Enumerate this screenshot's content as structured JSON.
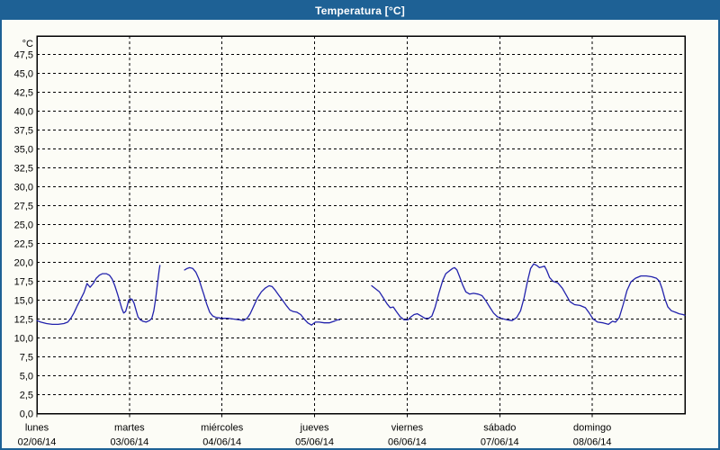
{
  "window": {
    "title": "Temperatura [°C]",
    "titlebar_color": "#1e6195",
    "border_color": "#1e6195",
    "background_color": "#fcfcf6"
  },
  "chart_data": {
    "type": "line",
    "title": "Temperatura [°C]",
    "unit_label": "°C",
    "grid": "dashed",
    "legend_position": "none",
    "y_axis": {
      "min": 0,
      "max": 50,
      "tick_step": 2.5,
      "ticks": [
        {
          "label": "47,5",
          "value": 47.5
        },
        {
          "label": "45,0",
          "value": 45.0
        },
        {
          "label": "42,5",
          "value": 42.5
        },
        {
          "label": "40,0",
          "value": 40.0
        },
        {
          "label": "37,5",
          "value": 37.5
        },
        {
          "label": "35,0",
          "value": 35.0
        },
        {
          "label": "32,5",
          "value": 32.5
        },
        {
          "label": "30,0",
          "value": 30.0
        },
        {
          "label": "27,5",
          "value": 27.5
        },
        {
          "label": "25,0",
          "value": 25.0
        },
        {
          "label": "22,5",
          "value": 22.5
        },
        {
          "label": "20,0",
          "value": 20.0
        },
        {
          "label": "17,5",
          "value": 17.5
        },
        {
          "label": "15,0",
          "value": 15.0
        },
        {
          "label": "12,5",
          "value": 12.5
        },
        {
          "label": "10,0",
          "value": 10.0
        },
        {
          "label": "7,5",
          "value": 7.5
        },
        {
          "label": "5,0",
          "value": 5.0
        },
        {
          "label": "2,5",
          "value": 2.5
        },
        {
          "label": "0,0",
          "value": 0.0
        }
      ]
    },
    "x_axis": {
      "total_hours": 168,
      "tick_every_hours": 24,
      "days": [
        {
          "name": "lunes",
          "date": "02/06/14",
          "start_hour": 0
        },
        {
          "name": "martes",
          "date": "03/06/14",
          "start_hour": 24
        },
        {
          "name": "miércoles",
          "date": "04/06/14",
          "start_hour": 48
        },
        {
          "name": "jueves",
          "date": "05/06/14",
          "start_hour": 72
        },
        {
          "name": "viernes",
          "date": "06/06/14",
          "start_hour": 96
        },
        {
          "name": "sábado",
          "date": "07/06/14",
          "start_hour": 120
        },
        {
          "name": "domingo",
          "date": "08/06/14",
          "start_hour": 144
        }
      ]
    },
    "series": [
      {
        "name": "Temperatura",
        "color": "#2222ac",
        "segments": [
          [
            [
              0,
              12.3
            ],
            [
              1,
              12.1
            ],
            [
              2.5,
              11.9
            ],
            [
              4,
              11.8
            ],
            [
              5.5,
              11.8
            ],
            [
              7,
              11.9
            ],
            [
              8,
              12.1
            ],
            [
              8.8,
              12.6
            ],
            [
              9.6,
              13.3
            ],
            [
              10.5,
              14.3
            ],
            [
              11.4,
              15.2
            ],
            [
              12.2,
              16.0
            ],
            [
              13,
              17.2
            ],
            [
              13.8,
              16.7
            ],
            [
              14.6,
              17.2
            ],
            [
              15.4,
              17.9
            ],
            [
              16.2,
              18.3
            ],
            [
              17,
              18.5
            ],
            [
              18,
              18.5
            ],
            [
              18.8,
              18.3
            ],
            [
              19.5,
              17.8
            ],
            [
              20.2,
              16.9
            ],
            [
              20.9,
              15.8
            ],
            [
              21.5,
              14.8
            ],
            [
              22,
              13.9
            ],
            [
              22.5,
              13.3
            ],
            [
              23,
              13.5
            ],
            [
              23.4,
              14.2
            ],
            [
              23.8,
              15.0
            ],
            [
              24.2,
              15.2
            ],
            [
              24.7,
              15.1
            ],
            [
              25.2,
              14.6
            ],
            [
              25.7,
              13.7
            ],
            [
              26.2,
              12.8
            ],
            [
              26.8,
              12.4
            ],
            [
              27.5,
              12.2
            ],
            [
              28.3,
              12.1
            ],
            [
              29.2,
              12.3
            ],
            [
              29.8,
              12.6
            ],
            [
              30.3,
              13.6
            ],
            [
              30.8,
              15.2
            ],
            [
              31.3,
              17.3
            ],
            [
              31.7,
              19.0
            ],
            [
              31.9,
              19.6
            ]
          ],
          [
            [
              38.3,
              19.0
            ],
            [
              39,
              19.2
            ],
            [
              39.6,
              19.3
            ],
            [
              40.4,
              19.2
            ],
            [
              41.2,
              18.7
            ],
            [
              42,
              17.8
            ],
            [
              42.6,
              16.8
            ],
            [
              43.3,
              15.7
            ],
            [
              44,
              14.5
            ],
            [
              44.8,
              13.4
            ],
            [
              45.6,
              12.9
            ],
            [
              46.5,
              12.7
            ],
            [
              48,
              12.6
            ],
            [
              49.5,
              12.6
            ],
            [
              51,
              12.5
            ],
            [
              52.5,
              12.4
            ],
            [
              53.5,
              12.3
            ],
            [
              54.5,
              12.6
            ],
            [
              55.3,
              13.2
            ],
            [
              56.2,
              14.2
            ],
            [
              57.2,
              15.3
            ],
            [
              58.2,
              16.1
            ],
            [
              59.2,
              16.6
            ],
            [
              60.2,
              16.9
            ],
            [
              61,
              16.8
            ],
            [
              61.8,
              16.3
            ],
            [
              62.8,
              15.6
            ],
            [
              63.8,
              14.9
            ],
            [
              64.8,
              14.2
            ],
            [
              65.6,
              13.7
            ],
            [
              66.4,
              13.5
            ],
            [
              67.4,
              13.4
            ],
            [
              68.4,
              13.1
            ],
            [
              69.3,
              12.5
            ],
            [
              70.2,
              12.0
            ],
            [
              71.2,
              11.7
            ],
            [
              72.2,
              12.1
            ],
            [
              73.2,
              12.1
            ],
            [
              74.5,
              12.0
            ],
            [
              75.8,
              12.0
            ],
            [
              77,
              12.2
            ],
            [
              78,
              12.4
            ],
            [
              78.5,
              12.4
            ]
          ],
          [
            [
              86.8,
              16.9
            ],
            [
              87.8,
              16.5
            ],
            [
              88.8,
              16.1
            ],
            [
              89.8,
              15.3
            ],
            [
              90.8,
              14.5
            ],
            [
              91.6,
              14.0
            ],
            [
              92.4,
              14.1
            ],
            [
              93.2,
              13.5
            ],
            [
              94.2,
              12.8
            ],
            [
              95.2,
              12.4
            ],
            [
              96.2,
              12.4
            ],
            [
              97,
              12.8
            ],
            [
              97.8,
              13.1
            ],
            [
              98.6,
              13.2
            ],
            [
              99.6,
              12.9
            ],
            [
              100.6,
              12.6
            ],
            [
              101.6,
              12.6
            ],
            [
              102.4,
              12.9
            ],
            [
              103.2,
              14.0
            ],
            [
              104.2,
              15.9
            ],
            [
              105.2,
              17.6
            ],
            [
              106,
              18.5
            ],
            [
              107,
              18.9
            ],
            [
              107.8,
              19.2
            ],
            [
              108.3,
              19.3
            ],
            [
              108.9,
              19.0
            ],
            [
              109.6,
              18.1
            ],
            [
              110.4,
              17.0
            ],
            [
              111.2,
              16.1
            ],
            [
              112.2,
              15.8
            ],
            [
              113.2,
              15.9
            ],
            [
              114.4,
              15.8
            ],
            [
              115.4,
              15.6
            ],
            [
              116.4,
              14.9
            ],
            [
              117.4,
              14.1
            ],
            [
              118.4,
              13.3
            ],
            [
              119.4,
              12.8
            ],
            [
              120.4,
              12.6
            ],
            [
              121.8,
              12.4
            ],
            [
              123.2,
              12.3
            ],
            [
              124.4,
              12.7
            ],
            [
              125.4,
              13.6
            ],
            [
              126.3,
              15.3
            ],
            [
              127.2,
              17.5
            ],
            [
              128,
              19.2
            ],
            [
              128.8,
              19.8
            ],
            [
              129.6,
              19.6
            ],
            [
              130.3,
              19.3
            ],
            [
              131,
              19.4
            ],
            [
              131.6,
              19.5
            ],
            [
              132.2,
              18.9
            ],
            [
              132.9,
              18.0
            ],
            [
              133.8,
              17.5
            ],
            [
              135,
              17.3
            ],
            [
              136.2,
              16.6
            ],
            [
              137.2,
              15.7
            ],
            [
              138.2,
              14.8
            ],
            [
              139.4,
              14.4
            ],
            [
              140.8,
              14.3
            ],
            [
              142.2,
              14.0
            ],
            [
              143.2,
              13.3
            ],
            [
              144.2,
              12.5
            ],
            [
              145.4,
              12.1
            ],
            [
              146.8,
              12.0
            ],
            [
              148.2,
              11.8
            ],
            [
              149.2,
              12.2
            ],
            [
              150,
              12.1
            ],
            [
              151,
              12.7
            ],
            [
              152,
              14.4
            ],
            [
              153,
              16.3
            ],
            [
              154,
              17.4
            ],
            [
              155.2,
              17.9
            ],
            [
              156.6,
              18.2
            ],
            [
              158,
              18.2
            ],
            [
              159.4,
              18.1
            ],
            [
              160.6,
              17.9
            ],
            [
              161.4,
              17.5
            ],
            [
              162.1,
              16.5
            ],
            [
              162.8,
              15.2
            ],
            [
              163.6,
              14.1
            ],
            [
              164.5,
              13.6
            ],
            [
              165.5,
              13.4
            ],
            [
              166.5,
              13.2
            ],
            [
              167.5,
              13.1
            ],
            [
              168,
              13.0
            ]
          ]
        ]
      }
    ]
  }
}
